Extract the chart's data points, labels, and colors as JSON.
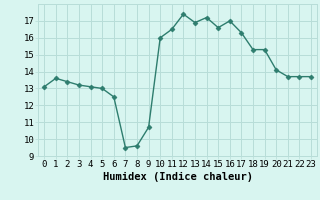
{
  "x": [
    0,
    1,
    2,
    3,
    4,
    5,
    6,
    7,
    8,
    9,
    10,
    11,
    12,
    13,
    14,
    15,
    16,
    17,
    18,
    19,
    20,
    21,
    22,
    23
  ],
  "y": [
    13.1,
    13.6,
    13.4,
    13.2,
    13.1,
    13.0,
    12.5,
    9.5,
    9.6,
    10.7,
    16.0,
    16.5,
    17.4,
    16.9,
    17.2,
    16.6,
    17.0,
    16.3,
    15.3,
    15.3,
    14.1,
    13.7,
    13.7,
    13.7
  ],
  "line_color": "#2e7d6e",
  "marker": "D",
  "marker_size": 2.5,
  "bg_color": "#d8f5f0",
  "grid_color": "#b8ddd8",
  "xlabel": "Humidex (Indice chaleur)",
  "ylim": [
    9,
    18
  ],
  "xlim": [
    -0.5,
    23.5
  ],
  "yticks": [
    9,
    10,
    11,
    12,
    13,
    14,
    15,
    16,
    17
  ],
  "xticks": [
    0,
    1,
    2,
    3,
    4,
    5,
    6,
    7,
    8,
    9,
    10,
    11,
    12,
    13,
    14,
    15,
    16,
    17,
    18,
    19,
    20,
    21,
    22,
    23
  ],
  "tick_fontsize": 6.5,
  "xlabel_fontsize": 7.5
}
